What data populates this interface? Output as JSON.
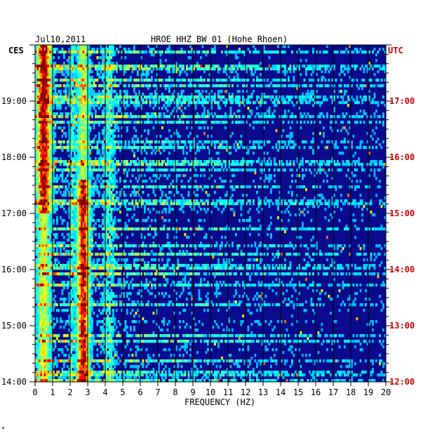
{
  "chart_data": {
    "type": "heatmap",
    "title": "HROE HHZ BW 01 (Hohe Rhoen)",
    "date": "Jul10,2011",
    "left_axis_label": "CES",
    "right_axis_label": "UTC",
    "xlabel": "FREQUENCY (HZ)",
    "xlim": [
      0,
      20
    ],
    "x_ticks": [
      "0",
      "1",
      "2",
      "3",
      "4",
      "5",
      "6",
      "7",
      "8",
      "9",
      "10",
      "11",
      "12",
      "13",
      "14",
      "15",
      "16",
      "17",
      "18",
      "19",
      "20"
    ],
    "ylim_ces_hours": [
      14,
      20
    ],
    "left_ticks": [
      "19:00",
      "18:00",
      "17:00",
      "16:00",
      "15:00",
      "14:00"
    ],
    "right_ticks": [
      "17:00",
      "16:00",
      "15:00",
      "14:00",
      "13:00",
      "12:00"
    ],
    "colors": {
      "background": "#0a0a8c",
      "grid": "#000000",
      "utc_text": "#cc0000",
      "text": "#000000"
    },
    "dominant_bands_hz": [
      {
        "center": 0.5,
        "strength": "strong",
        "note": "broad low-frequency energy, strongest 17:00-20:00"
      },
      {
        "center": 2.8,
        "strength": "strong",
        "note": "persistent band, strongest 14:00-17:30"
      },
      {
        "center": 4.2,
        "strength": "medium"
      }
    ]
  },
  "footer_mark": "*"
}
